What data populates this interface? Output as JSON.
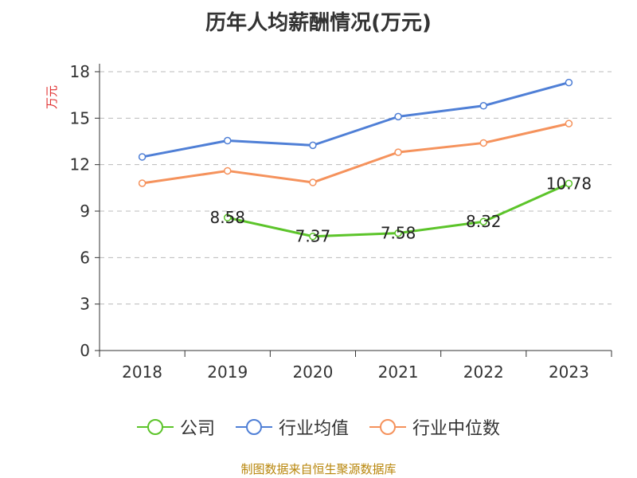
{
  "title": "历年人均薪酬情况(万元)",
  "source": "制图数据来自恒生聚源数据库",
  "colors": {
    "company": "#5cc42a",
    "avg": "#4f7fd6",
    "median": "#f5925c",
    "axis": "#333333",
    "grid": "#bbbbbb",
    "ylabel": "#e03030"
  },
  "chart_data": {
    "type": "line",
    "title": "历年人均薪酬情况(万元)",
    "ylabel": "万元",
    "xlabel": "",
    "categories": [
      "2018",
      "2019",
      "2020",
      "2021",
      "2022",
      "2023"
    ],
    "ylim": [
      0,
      18
    ],
    "yticks": [
      0,
      3,
      6,
      9,
      12,
      15,
      18
    ],
    "grid": true,
    "legend": "bottom",
    "series": [
      {
        "name": "公司",
        "color": "#5cc42a",
        "values": [
          null,
          8.58,
          7.37,
          7.58,
          8.32,
          10.78
        ],
        "labels": [
          "",
          "8.58",
          "7.37",
          "7.58",
          "8.32",
          "10.78"
        ]
      },
      {
        "name": "行业均值",
        "color": "#4f7fd6",
        "values": [
          12.5,
          13.55,
          13.25,
          15.1,
          15.8,
          17.3
        ]
      },
      {
        "name": "行业中位数",
        "color": "#f5925c",
        "values": [
          10.8,
          11.6,
          10.85,
          12.8,
          13.4,
          14.65
        ]
      }
    ]
  }
}
